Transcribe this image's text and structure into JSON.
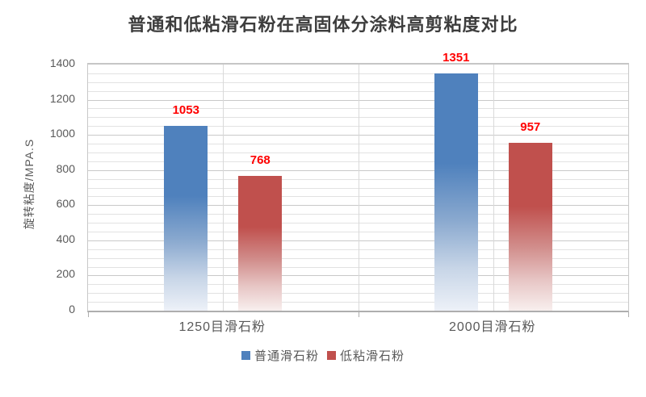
{
  "chart_data": {
    "type": "bar",
    "title": "普通和低粘滑石粉在高固体分涂料高剪粘度对比",
    "ylabel": "旋转粘度/MPA.S",
    "xlabel": "",
    "categories": [
      "1250目滑石粉",
      "2000目滑石粉"
    ],
    "series": [
      {
        "name": "普通滑石粉",
        "color": "#4F81BD",
        "values": [
          1053,
          1351
        ]
      },
      {
        "name": "低粘滑石粉",
        "color": "#C0504D",
        "values": [
          768,
          957
        ]
      }
    ],
    "ylim": [
      0,
      1400
    ],
    "yticks": [
      0,
      200,
      400,
      600,
      800,
      1000,
      1200,
      1400
    ],
    "minor_grid_step": 50,
    "major_grid_step": 200,
    "grid": "major and minor horizontal, light vertical category separators",
    "legend_position": "bottom",
    "data_label_color": "#FF0000",
    "data_labels": [
      "1053",
      "768",
      "1351",
      "957"
    ]
  }
}
